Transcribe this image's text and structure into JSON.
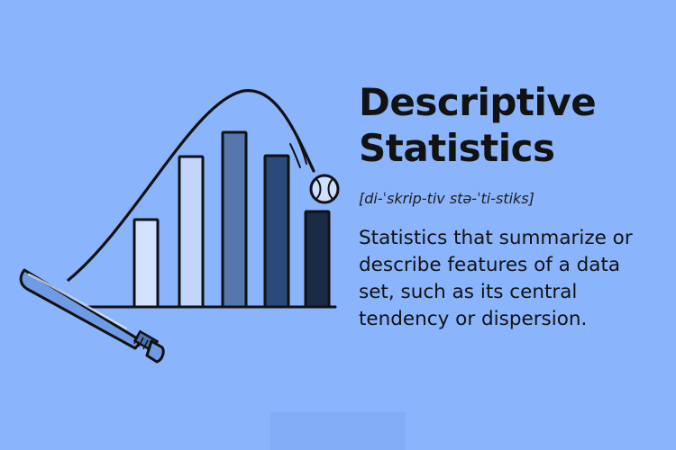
{
  "term": {
    "title_lines": [
      "Descriptive",
      "Statistics"
    ],
    "pronunciation": "[di-ˈskrip-tiv stə-ˈti-stiks]",
    "definition_lines": [
      "Statistics that summarize or",
      "describe features of a data",
      "set, such as its central",
      "tendency or dispersion."
    ]
  },
  "colors": {
    "background": "#8ab4fb",
    "text": "#121212",
    "outline": "#111111",
    "bar_shades": [
      "#d3e3ff",
      "#c2d6fb",
      "#5577ad",
      "#2c4a79",
      "#1a2b45"
    ]
  },
  "illustration": {
    "bar_relative_heights": [
      0.42,
      0.73,
      0.85,
      0.73,
      0.45
    ],
    "icons": [
      "bar-chart-icon",
      "baseball-bat-icon",
      "baseball-icon",
      "ball-trajectory-icon"
    ]
  }
}
